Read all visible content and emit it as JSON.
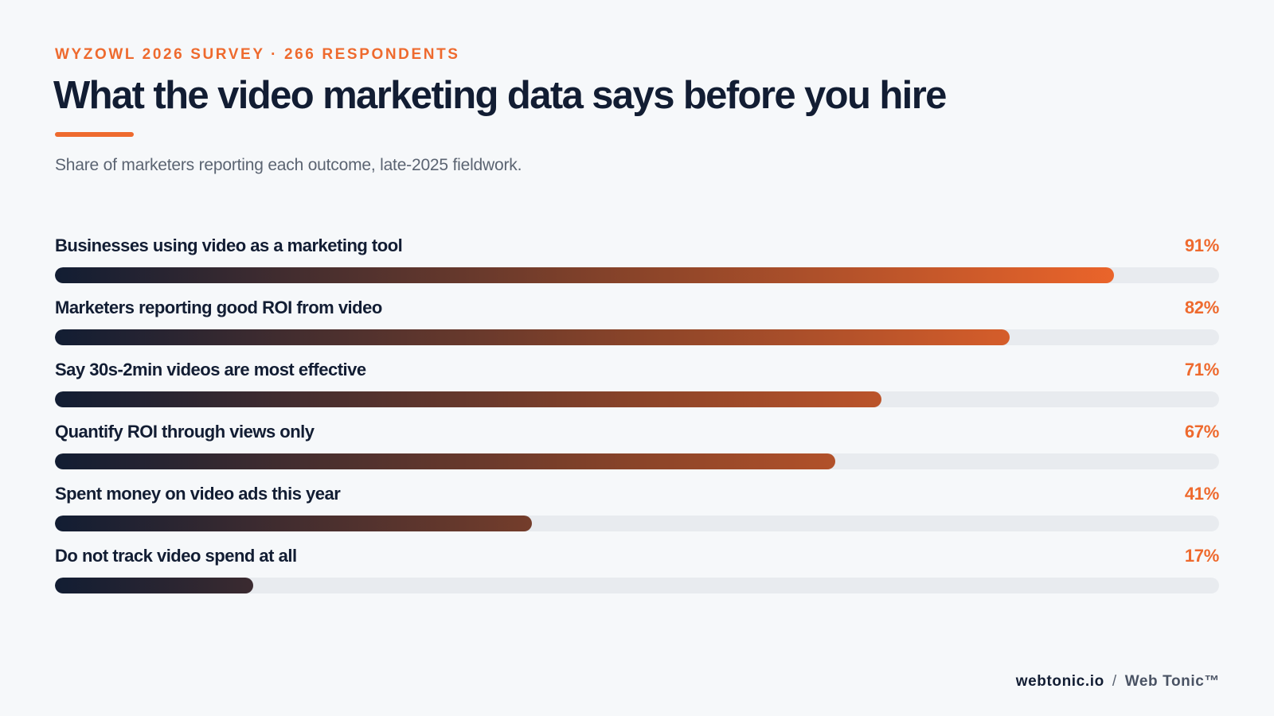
{
  "header": {
    "eyebrow": "WYZOWL 2026 SURVEY · 266 RESPONDENTS",
    "title": "What the video marketing data says before you hire",
    "subtitle": "Share of marketers reporting each outcome, late-2025 fieldwork."
  },
  "chart_data": {
    "type": "bar",
    "orientation": "horizontal",
    "unit": "%",
    "xlim": [
      0,
      100
    ],
    "categories": [
      "Businesses using video as a marketing tool",
      "Marketers reporting good ROI from video",
      "Say 30s-2min videos are most effective",
      "Quantify ROI through views only",
      "Spent money on video ads this year",
      "Do not track video spend at all"
    ],
    "values": [
      91,
      82,
      71,
      67,
      41,
      17
    ],
    "value_labels": [
      "91%",
      "82%",
      "71%",
      "67%",
      "41%",
      "17%"
    ],
    "grid": false,
    "legend": "none"
  },
  "colors": {
    "accent": "#ee6a2e",
    "ink": "#121d33",
    "track": "#e8ebef",
    "gradient_start": "#121d33",
    "gradient_end": "#ff6b2b"
  },
  "footer": {
    "site": "webtonic.io",
    "separator": "/",
    "brand": "Web Tonic™"
  }
}
